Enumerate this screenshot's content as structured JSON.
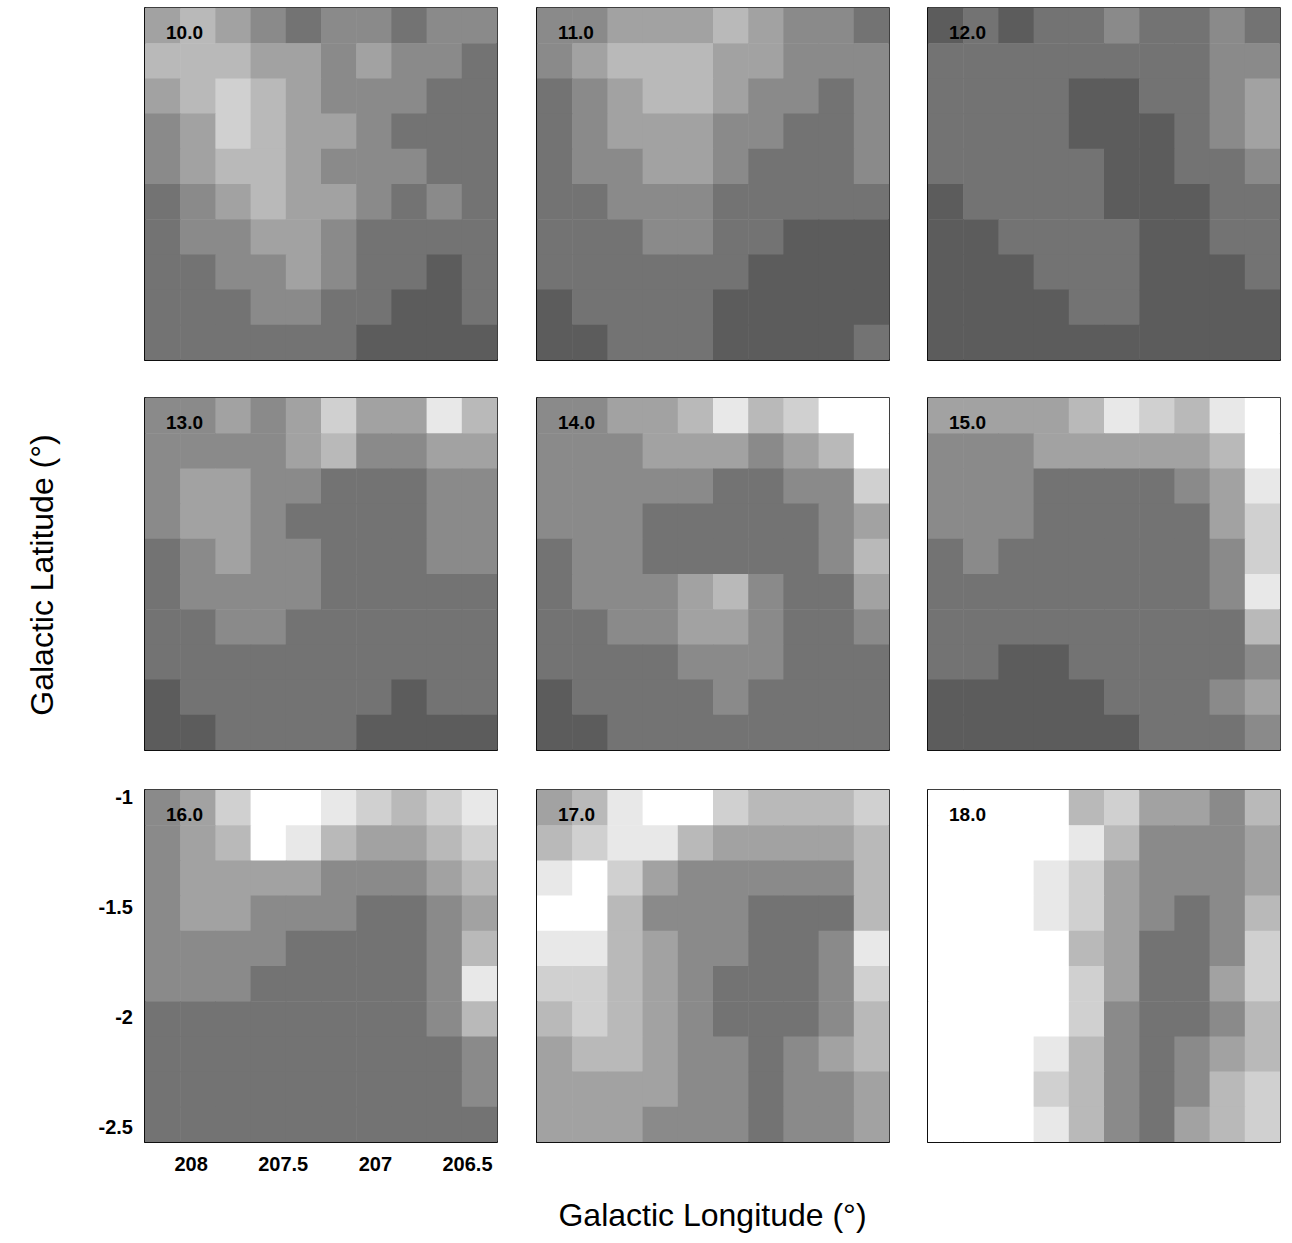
{
  "chart_data": {
    "type": "heatmap",
    "x_label": "Galactic Longitude (°)",
    "y_label": "Galactic Latitude (°)",
    "xlim": [
      208.25,
      206.34
    ],
    "ylim": [
      -2.57,
      -0.97
    ],
    "xticks": [
      208,
      207.5,
      207,
      206.5
    ],
    "yticks": [
      -1,
      -1.5,
      -2,
      -2.5
    ],
    "zlim": [
      0,
      9
    ],
    "panels": [
      {
        "title": "10.0",
        "cells": [
          [
            5,
            6,
            5,
            4,
            3,
            4,
            4,
            3,
            4,
            4
          ],
          [
            6,
            6,
            6,
            5,
            5,
            4,
            5,
            4,
            4,
            3
          ],
          [
            5,
            6,
            7,
            6,
            5,
            4,
            4,
            4,
            3,
            3
          ],
          [
            4,
            5,
            7,
            6,
            5,
            5,
            4,
            3,
            3,
            3
          ],
          [
            4,
            5,
            6,
            6,
            5,
            4,
            4,
            4,
            3,
            3
          ],
          [
            3,
            4,
            5,
            6,
            5,
            5,
            4,
            3,
            4,
            3
          ],
          [
            3,
            4,
            4,
            5,
            5,
            4,
            3,
            3,
            3,
            3
          ],
          [
            3,
            3,
            4,
            4,
            5,
            4,
            3,
            3,
            2,
            3
          ],
          [
            3,
            3,
            3,
            4,
            4,
            3,
            3,
            2,
            2,
            3
          ],
          [
            3,
            3,
            3,
            3,
            3,
            3,
            2,
            2,
            2,
            2
          ]
        ]
      },
      {
        "title": "11.0",
        "cells": [
          [
            4,
            4,
            5,
            5,
            5,
            6,
            5,
            4,
            4,
            3
          ],
          [
            4,
            5,
            6,
            6,
            6,
            5,
            5,
            4,
            4,
            4
          ],
          [
            3,
            4,
            5,
            6,
            6,
            5,
            4,
            4,
            3,
            4
          ],
          [
            3,
            4,
            5,
            5,
            5,
            4,
            4,
            3,
            3,
            4
          ],
          [
            3,
            4,
            4,
            5,
            5,
            4,
            3,
            3,
            3,
            4
          ],
          [
            3,
            3,
            4,
            4,
            4,
            3,
            3,
            3,
            3,
            3
          ],
          [
            3,
            3,
            3,
            4,
            4,
            3,
            3,
            2,
            2,
            2
          ],
          [
            3,
            3,
            3,
            3,
            3,
            3,
            2,
            2,
            2,
            2
          ],
          [
            2,
            3,
            3,
            3,
            3,
            2,
            2,
            2,
            2,
            2
          ],
          [
            2,
            2,
            3,
            3,
            3,
            2,
            2,
            2,
            2,
            3
          ]
        ]
      },
      {
        "title": "12.0",
        "cells": [
          [
            2,
            3,
            2,
            3,
            3,
            4,
            3,
            3,
            4,
            3
          ],
          [
            3,
            3,
            3,
            3,
            3,
            3,
            3,
            3,
            4,
            4
          ],
          [
            3,
            3,
            3,
            3,
            2,
            2,
            3,
            3,
            4,
            5
          ],
          [
            3,
            3,
            3,
            3,
            2,
            2,
            2,
            3,
            4,
            5
          ],
          [
            3,
            3,
            3,
            3,
            3,
            2,
            2,
            3,
            3,
            4
          ],
          [
            2,
            3,
            3,
            3,
            3,
            2,
            2,
            2,
            3,
            3
          ],
          [
            2,
            2,
            3,
            3,
            3,
            3,
            2,
            2,
            3,
            3
          ],
          [
            2,
            2,
            2,
            3,
            3,
            3,
            2,
            2,
            2,
            3
          ],
          [
            2,
            2,
            2,
            2,
            3,
            3,
            2,
            2,
            2,
            2
          ],
          [
            2,
            2,
            2,
            2,
            2,
            2,
            2,
            2,
            2,
            2
          ]
        ]
      },
      {
        "title": "13.0",
        "cells": [
          [
            4,
            4,
            5,
            4,
            5,
            7,
            5,
            5,
            8,
            6
          ],
          [
            4,
            4,
            4,
            4,
            5,
            6,
            4,
            4,
            5,
            5
          ],
          [
            4,
            5,
            5,
            4,
            4,
            3,
            3,
            3,
            4,
            4
          ],
          [
            4,
            5,
            5,
            4,
            3,
            3,
            3,
            3,
            4,
            4
          ],
          [
            3,
            4,
            5,
            4,
            4,
            3,
            3,
            3,
            4,
            4
          ],
          [
            3,
            4,
            4,
            4,
            4,
            3,
            3,
            3,
            3,
            3
          ],
          [
            3,
            3,
            4,
            4,
            3,
            3,
            3,
            3,
            3,
            3
          ],
          [
            3,
            3,
            3,
            3,
            3,
            3,
            3,
            3,
            3,
            3
          ],
          [
            2,
            3,
            3,
            3,
            3,
            3,
            3,
            2,
            3,
            3
          ],
          [
            2,
            2,
            3,
            3,
            3,
            3,
            2,
            2,
            2,
            2
          ]
        ]
      },
      {
        "title": "14.0",
        "cells": [
          [
            4,
            4,
            5,
            5,
            6,
            8,
            6,
            7,
            9,
            9
          ],
          [
            4,
            4,
            4,
            5,
            5,
            5,
            4,
            5,
            6,
            9
          ],
          [
            4,
            4,
            4,
            4,
            4,
            3,
            3,
            4,
            4,
            7
          ],
          [
            4,
            4,
            4,
            3,
            3,
            3,
            3,
            3,
            4,
            5
          ],
          [
            3,
            4,
            4,
            3,
            3,
            3,
            3,
            3,
            4,
            6
          ],
          [
            3,
            4,
            4,
            4,
            5,
            6,
            4,
            3,
            3,
            5
          ],
          [
            3,
            3,
            4,
            4,
            5,
            5,
            4,
            3,
            3,
            4
          ],
          [
            3,
            3,
            3,
            3,
            4,
            4,
            4,
            3,
            3,
            3
          ],
          [
            2,
            3,
            3,
            3,
            3,
            4,
            3,
            3,
            3,
            3
          ],
          [
            2,
            2,
            3,
            3,
            3,
            3,
            3,
            3,
            3,
            3
          ]
        ]
      },
      {
        "title": "15.0",
        "cells": [
          [
            5,
            5,
            5,
            5,
            6,
            8,
            7,
            6,
            8,
            9
          ],
          [
            4,
            4,
            4,
            5,
            5,
            5,
            5,
            5,
            6,
            9
          ],
          [
            4,
            4,
            4,
            3,
            3,
            3,
            3,
            4,
            5,
            8
          ],
          [
            4,
            4,
            4,
            3,
            3,
            3,
            3,
            3,
            5,
            7
          ],
          [
            3,
            4,
            3,
            3,
            3,
            3,
            3,
            3,
            4,
            7
          ],
          [
            3,
            3,
            3,
            3,
            3,
            3,
            3,
            3,
            4,
            8
          ],
          [
            3,
            3,
            3,
            3,
            3,
            3,
            3,
            3,
            3,
            6
          ],
          [
            3,
            3,
            2,
            2,
            3,
            3,
            3,
            3,
            3,
            4
          ],
          [
            2,
            2,
            2,
            2,
            2,
            3,
            3,
            3,
            4,
            5
          ],
          [
            2,
            2,
            2,
            2,
            2,
            2,
            3,
            3,
            3,
            4
          ]
        ]
      },
      {
        "title": "16.0",
        "cells": [
          [
            4,
            5,
            7,
            9,
            9,
            8,
            7,
            6,
            7,
            8
          ],
          [
            4,
            5,
            6,
            9,
            8,
            6,
            5,
            5,
            6,
            7
          ],
          [
            4,
            5,
            5,
            5,
            5,
            4,
            4,
            4,
            5,
            6
          ],
          [
            4,
            5,
            5,
            4,
            4,
            4,
            3,
            3,
            4,
            5
          ],
          [
            4,
            4,
            4,
            4,
            3,
            3,
            3,
            3,
            4,
            6
          ],
          [
            4,
            4,
            4,
            3,
            3,
            3,
            3,
            3,
            4,
            8
          ],
          [
            3,
            3,
            3,
            3,
            3,
            3,
            3,
            3,
            4,
            6
          ],
          [
            3,
            3,
            3,
            3,
            3,
            3,
            3,
            3,
            3,
            4
          ],
          [
            3,
            3,
            3,
            3,
            3,
            3,
            3,
            3,
            3,
            4
          ],
          [
            3,
            3,
            3,
            3,
            3,
            3,
            3,
            3,
            3,
            3
          ]
        ]
      },
      {
        "title": "17.0",
        "cells": [
          [
            5,
            6,
            8,
            9,
            9,
            7,
            6,
            6,
            6,
            7
          ],
          [
            6,
            7,
            8,
            8,
            6,
            5,
            5,
            5,
            5,
            6
          ],
          [
            8,
            9,
            7,
            5,
            4,
            4,
            4,
            4,
            4,
            6
          ],
          [
            9,
            9,
            6,
            4,
            4,
            4,
            3,
            3,
            3,
            6
          ],
          [
            8,
            8,
            6,
            5,
            4,
            4,
            3,
            3,
            4,
            8
          ],
          [
            7,
            7,
            6,
            5,
            4,
            3,
            3,
            3,
            4,
            7
          ],
          [
            6,
            7,
            6,
            5,
            4,
            3,
            3,
            3,
            4,
            6
          ],
          [
            5,
            6,
            6,
            5,
            4,
            4,
            3,
            4,
            5,
            6
          ],
          [
            5,
            5,
            5,
            5,
            4,
            4,
            3,
            4,
            4,
            5
          ],
          [
            5,
            5,
            5,
            4,
            4,
            4,
            3,
            4,
            4,
            5
          ]
        ]
      },
      {
        "title": "18.0",
        "cells": [
          [
            9,
            9,
            9,
            9,
            6,
            7,
            5,
            5,
            4,
            6
          ],
          [
            9,
            9,
            9,
            9,
            8,
            6,
            4,
            4,
            4,
            5
          ],
          [
            9,
            9,
            9,
            8,
            7,
            5,
            4,
            4,
            4,
            5
          ],
          [
            9,
            9,
            9,
            8,
            7,
            5,
            4,
            3,
            4,
            6
          ],
          [
            9,
            9,
            9,
            9,
            6,
            5,
            3,
            3,
            4,
            7
          ],
          [
            9,
            9,
            9,
            9,
            7,
            5,
            3,
            3,
            5,
            7
          ],
          [
            9,
            9,
            9,
            9,
            7,
            4,
            3,
            3,
            4,
            6
          ],
          [
            9,
            9,
            9,
            8,
            6,
            4,
            3,
            4,
            5,
            6
          ],
          [
            9,
            9,
            9,
            7,
            6,
            4,
            3,
            4,
            6,
            7
          ],
          [
            9,
            9,
            9,
            8,
            6,
            4,
            3,
            5,
            6,
            7
          ]
        ]
      }
    ]
  }
}
